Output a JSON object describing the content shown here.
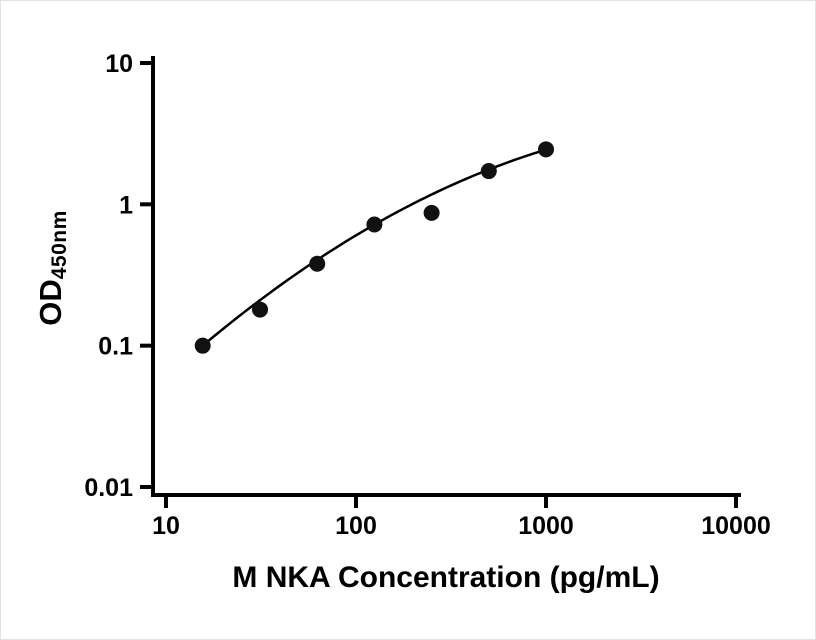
{
  "figure": {
    "background": "#ffffff",
    "axis_color": "#000000",
    "point_color": "#111111",
    "curve_color": "#000000"
  },
  "chart_data": {
    "type": "scatter",
    "title": "",
    "xlabel": "M NKA Concentration (pg/mL)",
    "ylabel_main": "OD",
    "ylabel_sub": "450nm",
    "x_scale": "log10",
    "y_scale": "log10",
    "xlim": [
      10,
      10000
    ],
    "ylim": [
      0.01,
      10
    ],
    "x_ticks": [
      10,
      100,
      1000,
      10000
    ],
    "x_tick_labels": [
      "10",
      "100",
      "1000",
      "10000"
    ],
    "y_ticks": [
      0.01,
      0.1,
      1,
      10
    ],
    "y_tick_labels": [
      "0.01",
      "0.1",
      "1",
      "10"
    ],
    "grid": false,
    "legend": "none",
    "series": [
      {
        "name": "standard-points",
        "marker": "filled-circle",
        "x": [
          15.6,
          31.25,
          62.5,
          125,
          250,
          500,
          1000
        ],
        "y": [
          0.1,
          0.18,
          0.38,
          0.72,
          0.87,
          1.72,
          2.45
        ]
      }
    ],
    "fit_curve": {
      "name": "fitted-curve",
      "model": "quadratic_loglog",
      "coeffs": [
        -2.6297,
        1.604,
        -0.1995
      ],
      "x_range": [
        15.6,
        1000
      ]
    }
  }
}
